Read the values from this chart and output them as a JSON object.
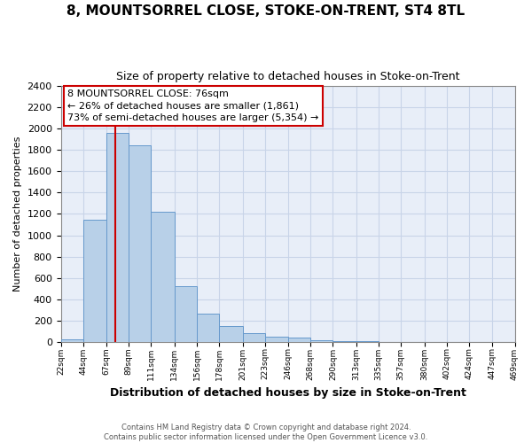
{
  "title": "8, MOUNTSORREL CLOSE, STOKE-ON-TRENT, ST4 8TL",
  "subtitle": "Size of property relative to detached houses in Stoke-on-Trent",
  "xlabel": "Distribution of detached houses by size in Stoke-on-Trent",
  "ylabel": "Number of detached properties",
  "bin_edges": [
    22,
    44,
    67,
    89,
    111,
    134,
    156,
    178,
    201,
    223,
    246,
    268,
    290,
    313,
    335,
    357,
    380,
    402,
    424,
    447,
    469
  ],
  "bin_heights": [
    25,
    1150,
    1960,
    1840,
    1220,
    520,
    265,
    150,
    80,
    50,
    40,
    15,
    10,
    5,
    2,
    2,
    1,
    1,
    0,
    0
  ],
  "bar_color": "#b8d0e8",
  "bar_edge_color": "#6699cc",
  "property_line_x": 76,
  "annotation_title": "8 MOUNTSORREL CLOSE: 76sqm",
  "annotation_line1": "← 26% of detached houses are smaller (1,861)",
  "annotation_line2": "73% of semi-detached houses are larger (5,354) →",
  "annotation_box_color": "#ffffff",
  "annotation_box_edge_color": "#cc0000",
  "red_line_color": "#cc0000",
  "grid_color": "#c8d4e8",
  "background_color": "#ffffff",
  "plot_bg_color": "#e8eef8",
  "ylim": [
    0,
    2400
  ],
  "yticks": [
    0,
    200,
    400,
    600,
    800,
    1000,
    1200,
    1400,
    1600,
    1800,
    2000,
    2200,
    2400
  ],
  "tick_labels": [
    "22sqm",
    "44sqm",
    "67sqm",
    "89sqm",
    "111sqm",
    "134sqm",
    "156sqm",
    "178sqm",
    "201sqm",
    "223sqm",
    "246sqm",
    "268sqm",
    "290sqm",
    "313sqm",
    "335sqm",
    "357sqm",
    "380sqm",
    "402sqm",
    "424sqm",
    "447sqm",
    "469sqm"
  ],
  "footer_line1": "Contains HM Land Registry data © Crown copyright and database right 2024.",
  "footer_line2": "Contains public sector information licensed under the Open Government Licence v3.0."
}
